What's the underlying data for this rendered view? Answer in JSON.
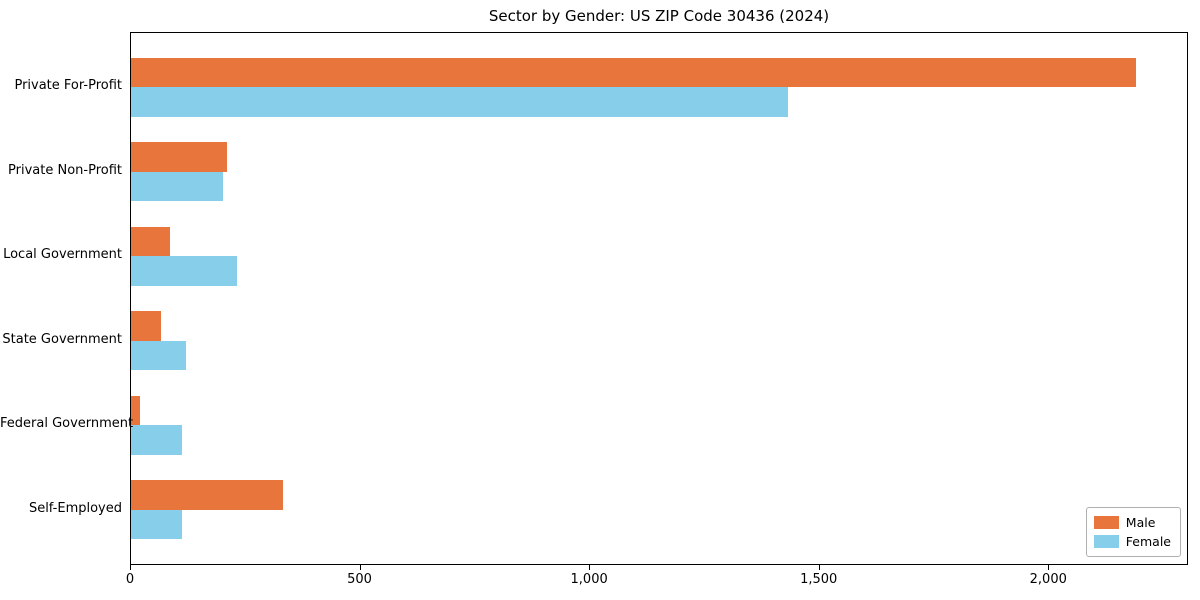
{
  "chart_data": {
    "type": "bar",
    "orientation": "horizontal",
    "title": "Sector by Gender: US ZIP Code 30436 (2024)",
    "categories": [
      "Private For-Profit",
      "Private Non-Profit",
      "Local Government",
      "State Government",
      "Federal Government",
      "Self-Employed"
    ],
    "series": [
      {
        "name": "Male",
        "color": "#e8763c",
        "values": [
          2190,
          210,
          85,
          65,
          20,
          330
        ]
      },
      {
        "name": "Female",
        "color": "#87ceeb",
        "values": [
          1430,
          200,
          230,
          120,
          110,
          110
        ]
      }
    ],
    "xlabel": "",
    "ylabel": "",
    "xlim": [
      0,
      2300
    ],
    "xticks": [
      0,
      500,
      1000,
      1500,
      2000
    ],
    "xtick_labels": [
      "0",
      "500",
      "1,000",
      "1,500",
      "2,000"
    ],
    "grid": false,
    "legend_position": "lower right"
  }
}
